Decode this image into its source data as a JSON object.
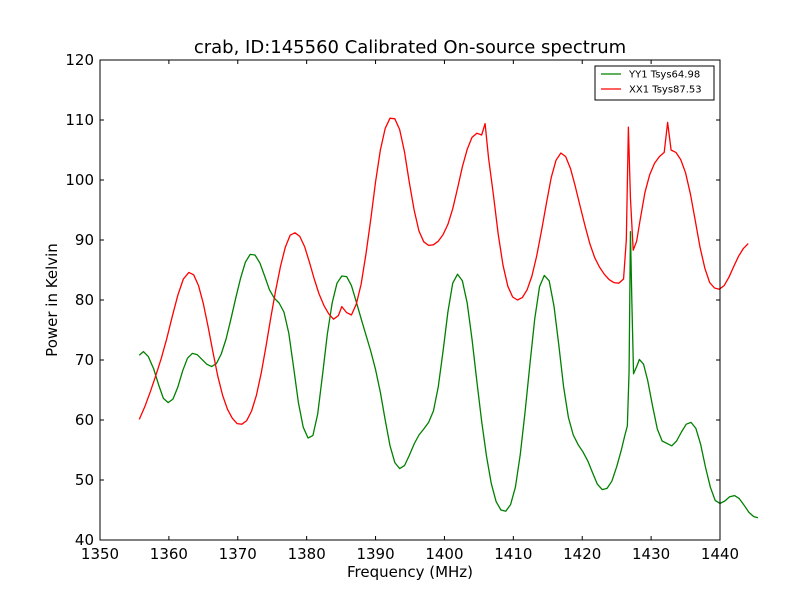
{
  "chart_data": {
    "type": "line",
    "title": "crab, ID:145560 Calibrated On-source spectrum",
    "xlabel": "Frequency (MHz)",
    "ylabel": "Power in Kelvin",
    "xlim": [
      1350,
      1440
    ],
    "ylim": [
      40,
      120
    ],
    "xticks": [
      1350,
      1360,
      1370,
      1380,
      1390,
      1400,
      1410,
      1420,
      1430,
      1440
    ],
    "yticks": [
      40,
      50,
      60,
      70,
      80,
      90,
      100,
      110,
      120
    ],
    "grid": false,
    "legend_position": "top-right",
    "series": [
      {
        "name": "YY1 Tsys64.98",
        "color": "#008000",
        "points": [
          [
            1355.7,
            70.8
          ],
          [
            1356.3,
            71.4
          ],
          [
            1357.0,
            70.6
          ],
          [
            1357.8,
            68.5
          ],
          [
            1358.5,
            65.9
          ],
          [
            1359.2,
            63.6
          ],
          [
            1359.9,
            62.9
          ],
          [
            1360.6,
            63.5
          ],
          [
            1361.3,
            65.5
          ],
          [
            1362.0,
            68.2
          ],
          [
            1362.7,
            70.3
          ],
          [
            1363.4,
            71.1
          ],
          [
            1364.1,
            70.9
          ],
          [
            1364.8,
            70.1
          ],
          [
            1365.5,
            69.3
          ],
          [
            1366.2,
            68.9
          ],
          [
            1366.9,
            69.4
          ],
          [
            1367.6,
            71.0
          ],
          [
            1368.3,
            73.5
          ],
          [
            1369.0,
            76.8
          ],
          [
            1369.7,
            80.3
          ],
          [
            1370.4,
            83.6
          ],
          [
            1371.1,
            86.3
          ],
          [
            1371.8,
            87.6
          ],
          [
            1372.5,
            87.5
          ],
          [
            1373.2,
            86.2
          ],
          [
            1373.9,
            84.0
          ],
          [
            1374.6,
            81.7
          ],
          [
            1375.3,
            80.3
          ],
          [
            1376.0,
            79.5
          ],
          [
            1376.7,
            78.0
          ],
          [
            1377.4,
            74.5
          ],
          [
            1378.1,
            68.8
          ],
          [
            1378.8,
            62.9
          ],
          [
            1379.5,
            58.8
          ],
          [
            1380.2,
            57.0
          ],
          [
            1380.9,
            57.4
          ],
          [
            1381.6,
            61.0
          ],
          [
            1382.3,
            67.5
          ],
          [
            1383.0,
            74.3
          ],
          [
            1383.7,
            79.5
          ],
          [
            1384.4,
            82.8
          ],
          [
            1385.1,
            84.0
          ],
          [
            1385.8,
            83.9
          ],
          [
            1386.5,
            82.4
          ],
          [
            1387.2,
            79.7
          ],
          [
            1387.9,
            76.9
          ],
          [
            1388.6,
            74.2
          ],
          [
            1389.3,
            71.5
          ],
          [
            1390.0,
            68.4
          ],
          [
            1390.7,
            64.6
          ],
          [
            1391.4,
            60.0
          ],
          [
            1392.1,
            55.7
          ],
          [
            1392.8,
            52.9
          ],
          [
            1393.5,
            51.9
          ],
          [
            1394.2,
            52.4
          ],
          [
            1394.9,
            54.1
          ],
          [
            1395.6,
            56.0
          ],
          [
            1396.3,
            57.5
          ],
          [
            1397.0,
            58.5
          ],
          [
            1397.7,
            59.6
          ],
          [
            1398.4,
            61.5
          ],
          [
            1399.1,
            65.5
          ],
          [
            1399.8,
            71.5
          ],
          [
            1400.5,
            78.0
          ],
          [
            1401.2,
            82.8
          ],
          [
            1401.9,
            84.3
          ],
          [
            1402.6,
            83.2
          ],
          [
            1403.3,
            79.5
          ],
          [
            1404.0,
            73.5
          ],
          [
            1404.7,
            66.5
          ],
          [
            1405.4,
            59.8
          ],
          [
            1406.1,
            54.0
          ],
          [
            1406.8,
            49.4
          ],
          [
            1407.5,
            46.4
          ],
          [
            1408.2,
            45.0
          ],
          [
            1408.9,
            44.8
          ],
          [
            1409.6,
            45.9
          ],
          [
            1410.3,
            48.8
          ],
          [
            1411.0,
            54.2
          ],
          [
            1411.7,
            61.3
          ],
          [
            1412.4,
            69.2
          ],
          [
            1413.1,
            76.8
          ],
          [
            1413.8,
            82.2
          ],
          [
            1414.5,
            84.1
          ],
          [
            1415.2,
            83.2
          ],
          [
            1415.9,
            79.0
          ],
          [
            1416.6,
            72.5
          ],
          [
            1417.3,
            65.5
          ],
          [
            1418.0,
            60.4
          ],
          [
            1418.7,
            57.5
          ],
          [
            1419.4,
            55.9
          ],
          [
            1420.1,
            54.7
          ],
          [
            1420.8,
            53.2
          ],
          [
            1421.5,
            51.2
          ],
          [
            1422.2,
            49.3
          ],
          [
            1422.9,
            48.4
          ],
          [
            1423.6,
            48.6
          ],
          [
            1424.3,
            49.8
          ],
          [
            1425.0,
            52.2
          ],
          [
            1425.7,
            55.1
          ],
          [
            1426.2,
            57.5
          ],
          [
            1426.55,
            59.0
          ],
          [
            1426.8,
            68.0
          ],
          [
            1427.0,
            91.4
          ],
          [
            1427.2,
            80.0
          ],
          [
            1427.45,
            67.7
          ],
          [
            1427.9,
            68.9
          ],
          [
            1428.3,
            70.1
          ],
          [
            1428.9,
            69.3
          ],
          [
            1429.5,
            66.6
          ],
          [
            1430.2,
            62.4
          ],
          [
            1430.9,
            58.5
          ],
          [
            1431.6,
            56.5
          ],
          [
            1432.3,
            56.1
          ],
          [
            1433.0,
            55.7
          ],
          [
            1433.7,
            56.5
          ],
          [
            1434.4,
            58.0
          ],
          [
            1435.1,
            59.3
          ],
          [
            1435.8,
            59.6
          ],
          [
            1436.5,
            58.6
          ],
          [
            1437.2,
            55.9
          ],
          [
            1437.9,
            52.1
          ],
          [
            1438.6,
            48.8
          ],
          [
            1439.3,
            46.6
          ],
          [
            1440.0,
            46.1
          ],
          [
            1440.7,
            46.5
          ],
          [
            1441.4,
            47.2
          ],
          [
            1442.1,
            47.4
          ],
          [
            1442.8,
            46.9
          ],
          [
            1443.5,
            45.8
          ],
          [
            1444.2,
            44.6
          ],
          [
            1444.9,
            43.9
          ],
          [
            1445.5,
            43.7
          ]
        ]
      },
      {
        "name": "XX1 Tsys87.53",
        "color": "#ff0000",
        "points": [
          [
            1355.7,
            60.1
          ],
          [
            1356.5,
            62.2
          ],
          [
            1357.3,
            64.7
          ],
          [
            1358.1,
            67.4
          ],
          [
            1358.9,
            70.3
          ],
          [
            1359.7,
            73.6
          ],
          [
            1360.5,
            77.3
          ],
          [
            1361.3,
            80.8
          ],
          [
            1362.1,
            83.5
          ],
          [
            1362.9,
            84.6
          ],
          [
            1363.6,
            84.2
          ],
          [
            1364.3,
            82.4
          ],
          [
            1365.0,
            79.4
          ],
          [
            1365.7,
            75.5
          ],
          [
            1366.4,
            71.3
          ],
          [
            1367.1,
            67.3
          ],
          [
            1367.8,
            64.1
          ],
          [
            1368.5,
            61.8
          ],
          [
            1369.2,
            60.3
          ],
          [
            1369.9,
            59.4
          ],
          [
            1370.6,
            59.3
          ],
          [
            1371.3,
            59.9
          ],
          [
            1372.0,
            61.5
          ],
          [
            1372.7,
            64.1
          ],
          [
            1373.4,
            67.8
          ],
          [
            1374.1,
            72.3
          ],
          [
            1374.8,
            77.1
          ],
          [
            1375.5,
            81.6
          ],
          [
            1376.2,
            85.6
          ],
          [
            1376.9,
            88.8
          ],
          [
            1377.6,
            90.8
          ],
          [
            1378.3,
            91.2
          ],
          [
            1379.0,
            90.6
          ],
          [
            1379.7,
            88.9
          ],
          [
            1380.4,
            86.3
          ],
          [
            1381.1,
            83.5
          ],
          [
            1381.8,
            81.0
          ],
          [
            1382.5,
            79.1
          ],
          [
            1383.2,
            77.7
          ],
          [
            1383.9,
            76.8
          ],
          [
            1384.6,
            77.4
          ],
          [
            1385.1,
            78.9
          ],
          [
            1385.8,
            77.9
          ],
          [
            1386.5,
            77.5
          ],
          [
            1387.2,
            79.3
          ],
          [
            1387.9,
            82.6
          ],
          [
            1388.6,
            87.6
          ],
          [
            1389.3,
            93.4
          ],
          [
            1390.0,
            99.7
          ],
          [
            1390.7,
            105.0
          ],
          [
            1391.4,
            108.6
          ],
          [
            1392.1,
            110.3
          ],
          [
            1392.8,
            110.2
          ],
          [
            1393.5,
            108.4
          ],
          [
            1394.2,
            104.7
          ],
          [
            1394.9,
            99.6
          ],
          [
            1395.6,
            95.0
          ],
          [
            1396.3,
            91.5
          ],
          [
            1397.0,
            89.7
          ],
          [
            1397.7,
            89.1
          ],
          [
            1398.4,
            89.2
          ],
          [
            1399.1,
            89.8
          ],
          [
            1399.8,
            90.9
          ],
          [
            1400.5,
            92.6
          ],
          [
            1401.2,
            95.2
          ],
          [
            1401.9,
            98.6
          ],
          [
            1402.6,
            102.2
          ],
          [
            1403.3,
            105.1
          ],
          [
            1404.0,
            107.1
          ],
          [
            1404.7,
            107.8
          ],
          [
            1405.4,
            107.5
          ],
          [
            1405.9,
            109.4
          ],
          [
            1406.4,
            103.7
          ],
          [
            1407.1,
            97.6
          ],
          [
            1407.8,
            91.0
          ],
          [
            1408.5,
            85.8
          ],
          [
            1409.2,
            82.3
          ],
          [
            1409.9,
            80.5
          ],
          [
            1410.6,
            80.0
          ],
          [
            1411.3,
            80.4
          ],
          [
            1412.0,
            81.7
          ],
          [
            1412.7,
            84.0
          ],
          [
            1413.4,
            87.4
          ],
          [
            1414.1,
            91.6
          ],
          [
            1414.8,
            96.1
          ],
          [
            1415.5,
            100.4
          ],
          [
            1416.2,
            103.3
          ],
          [
            1416.9,
            104.5
          ],
          [
            1417.6,
            103.9
          ],
          [
            1418.3,
            101.9
          ],
          [
            1419.0,
            98.9
          ],
          [
            1419.7,
            95.6
          ],
          [
            1420.4,
            92.4
          ],
          [
            1421.1,
            89.4
          ],
          [
            1421.8,
            87.1
          ],
          [
            1422.5,
            85.5
          ],
          [
            1423.2,
            84.3
          ],
          [
            1423.9,
            83.4
          ],
          [
            1424.6,
            82.9
          ],
          [
            1425.3,
            82.8
          ],
          [
            1426.0,
            83.5
          ],
          [
            1426.4,
            90.0
          ],
          [
            1426.7,
            108.8
          ],
          [
            1427.0,
            97.0
          ],
          [
            1427.4,
            88.3
          ],
          [
            1427.9,
            89.8
          ],
          [
            1428.4,
            93.3
          ],
          [
            1429.1,
            97.9
          ],
          [
            1429.8,
            100.9
          ],
          [
            1430.5,
            102.8
          ],
          [
            1431.2,
            103.9
          ],
          [
            1431.9,
            104.6
          ],
          [
            1432.4,
            109.6
          ],
          [
            1432.9,
            105.0
          ],
          [
            1433.6,
            104.6
          ],
          [
            1434.3,
            103.4
          ],
          [
            1435.0,
            101.2
          ],
          [
            1435.7,
            97.7
          ],
          [
            1436.4,
            93.3
          ],
          [
            1437.1,
            88.8
          ],
          [
            1437.8,
            85.3
          ],
          [
            1438.5,
            82.9
          ],
          [
            1439.2,
            82.0
          ],
          [
            1439.9,
            81.8
          ],
          [
            1440.6,
            82.4
          ],
          [
            1441.3,
            83.8
          ],
          [
            1442.0,
            85.6
          ],
          [
            1442.7,
            87.3
          ],
          [
            1443.4,
            88.6
          ],
          [
            1444.1,
            89.4
          ]
        ]
      }
    ]
  }
}
